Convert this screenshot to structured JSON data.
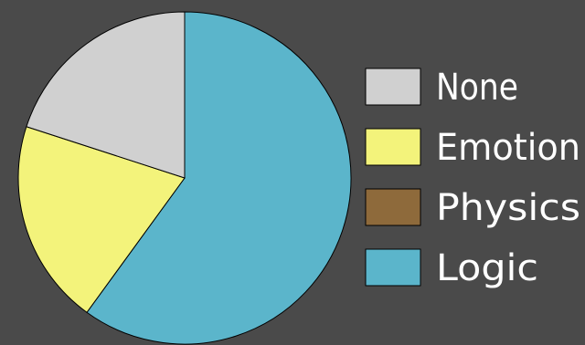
{
  "chart_data": {
    "type": "pie",
    "title": "",
    "background": "#4a4a4a",
    "legend_position": "right",
    "slices": [
      {
        "label": "None",
        "value": 20,
        "color": "#d0d0d0"
      },
      {
        "label": "Emotion",
        "value": 20,
        "color": "#f3f37b"
      },
      {
        "label": "Physics",
        "value": 0,
        "color": "#8e6a3b"
      },
      {
        "label": "Logic",
        "value": 60,
        "color": "#5bb5cb"
      }
    ]
  }
}
